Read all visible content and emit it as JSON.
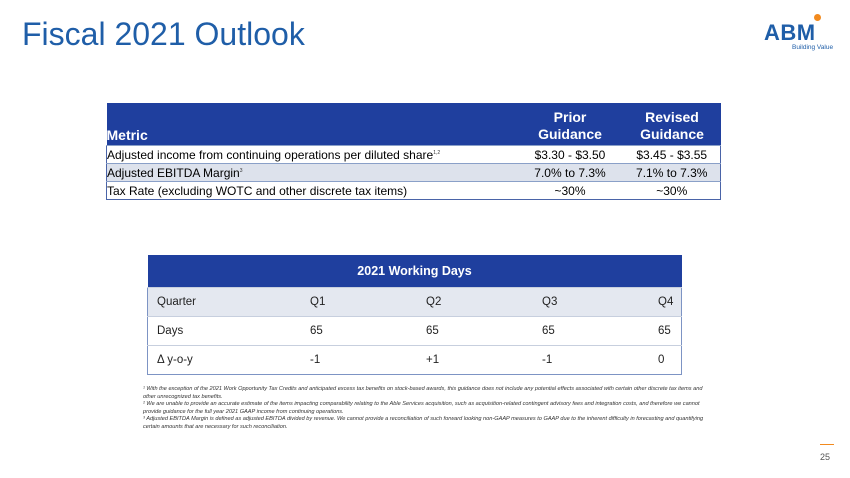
{
  "page": {
    "title": "Fiscal 2021 Outlook",
    "page_number": "25"
  },
  "logo": {
    "text": "ABM",
    "tagline": "Building Value"
  },
  "outlook_table": {
    "headers": {
      "metric": "Metric",
      "prior": [
        "Prior",
        "Guidance"
      ],
      "revised": [
        "Revised",
        "Guidance"
      ]
    },
    "rows": [
      {
        "metric": "Adjusted income from continuing operations per diluted share",
        "sup": "1,2",
        "prior": "$3.30 - $3.50",
        "revised": "$3.45 - $3.55"
      },
      {
        "metric": "Adjusted EBITDA Margin",
        "sup": "3",
        "prior": "7.0% to 7.3%",
        "revised": "7.1% to 7.3%"
      },
      {
        "metric": "Tax Rate (excluding WOTC and other discrete tax items)",
        "sup": "",
        "prior": "~30%",
        "revised": "~30%"
      }
    ]
  },
  "working_days": {
    "title": "2021 Working Days",
    "header": [
      "Quarter",
      "Q1",
      "Q2",
      "Q3",
      "Q4"
    ],
    "rows": [
      [
        "Days",
        "65",
        "65",
        "65",
        "65"
      ],
      [
        "Δ y-o-y",
        "-1",
        "+1",
        "-1",
        "0"
      ]
    ]
  },
  "footnotes": [
    "¹ With the exception of the 2021 Work Opportunity Tax Credits and anticipated excess tax benefits on stock-based awards, this guidance does not include any potential effects associated with certain other discrete tax items and other unrecognized tax benefits.",
    "² We are unable to provide an accurate estimate of the items impacting comparability relating to the Able Services acquisition, such as acquisition-related contingent advisory fees and integration costs, and therefore we cannot provide guidance for the full year 2021 GAAP income from continuing operations.",
    "³ Adjusted EBITDA Margin is defined as adjusted EBITDA divided by revenue. We cannot provide a reconciliation of such forward looking non-GAAP measures to GAAP due to the inherent difficulty in forecasting and quantifying certain amounts that are necessary for such reconciliation."
  ]
}
